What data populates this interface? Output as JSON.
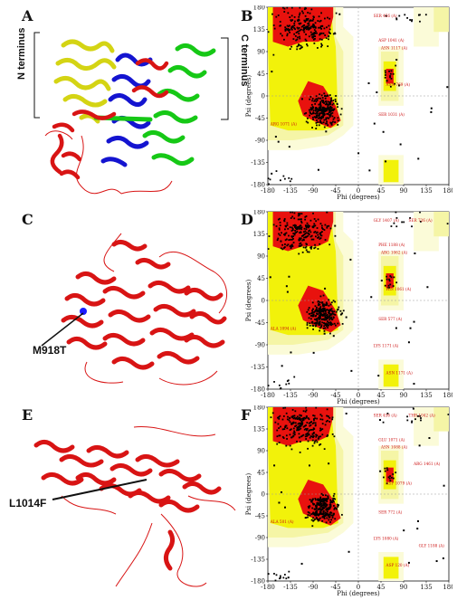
{
  "panels": [
    {
      "letter": "A",
      "type": "structure",
      "left_label": "N terminus",
      "right_label": "C terminus"
    },
    {
      "letter": "B",
      "type": "ramachandran"
    },
    {
      "letter": "C",
      "type": "structure",
      "mutation_label": "M918T"
    },
    {
      "letter": "D",
      "type": "ramachandran"
    },
    {
      "letter": "E",
      "type": "structure",
      "mutation_label": "L1014F"
    },
    {
      "letter": "F",
      "type": "ramachandran"
    }
  ],
  "axes": {
    "xlabel": "Phi (degrees)",
    "ylabel": "Psi (degrees)",
    "xticks": [
      "-180",
      "-135",
      "-90",
      "-45",
      "0",
      "45",
      "90",
      "135",
      "180"
    ],
    "yticks": [
      "180",
      "135",
      "90",
      "45",
      "0",
      "-45",
      "-90",
      "-135",
      "-180"
    ]
  },
  "residue_labels": {
    "B": [
      "SER 456 (A)",
      "ASP 1041 (A)",
      "ASN 1117 (A)",
      "ASN 769 (A)",
      "SER 1031 (A)",
      "ARG 1071 (A)"
    ],
    "D": [
      "GLY 1407 (A)",
      "PHE 1188 (A)",
      "ARG 1062 (A)",
      "HIS 1061 (A)",
      "SER 577 (A)",
      "ALA 1094 (A)",
      "LYS 1171 (A)",
      "ASN 1171 (A)",
      "SER 726 (A)"
    ],
    "F": [
      "SER 456 (A)",
      "GLU 1071 (A)",
      "ASN 1088 (A)",
      "ASP 1079 (A)",
      "SER 772 (A)",
      "ALA 501 (A)",
      "LYS 1080 (A)",
      "ASP 120 (A)",
      "THR 1042 (A)",
      "ARG 1461 (A)",
      "GLY 1188 (A)"
    ]
  },
  "colors": {
    "favored": "#e8120e",
    "allowed": "#f2f20a",
    "generous": "#f5f5a6",
    "outer": "#fbfbd8",
    "chain_red": "#d81414",
    "chain_blue": "#1414d0",
    "chain_green": "#16c816",
    "chain_yellow": "#d4d414",
    "mutation_site": "#1a1aff"
  }
}
